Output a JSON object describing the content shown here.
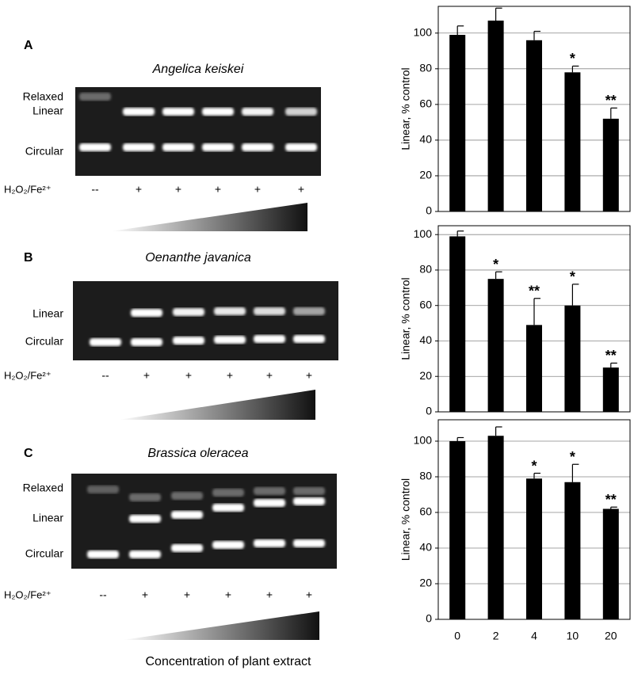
{
  "panels": [
    {
      "label": "A",
      "title": "Angelica keiskei",
      "bands": [
        "Relaxed",
        "Linear",
        "Circular"
      ],
      "treatment": "H₂O₂/Fe²⁺",
      "lanes": [
        "--",
        "+",
        "+",
        "+",
        "+",
        "+"
      ]
    },
    {
      "label": "B",
      "title": "Oenanthe javanica",
      "bands": [
        "Linear",
        "Circular"
      ],
      "treatment": "H₂O₂/Fe²⁺",
      "lanes": [
        "--",
        "+",
        "+",
        "+",
        "+",
        "+"
      ]
    },
    {
      "label": "C",
      "title": "Brassica oleracea",
      "bands": [
        "Relaxed",
        "Linear",
        "Circular"
      ],
      "treatment": "H₂O₂/Fe²⁺",
      "lanes": [
        "--",
        "+",
        "+",
        "+",
        "+",
        "+"
      ]
    }
  ],
  "footer": "Concentration of plant extract",
  "chart_data": [
    {
      "type": "bar",
      "ylabel": "Linear, % control",
      "categories": [
        null,
        null,
        null,
        null,
        null
      ],
      "values": [
        99,
        107,
        96,
        78,
        52
      ],
      "errors": [
        5,
        7,
        5,
        3.5,
        6
      ],
      "annotations": [
        null,
        null,
        null,
        "*",
        "**"
      ],
      "color": "#000000",
      "ylim": [
        0,
        115
      ],
      "yticks": [
        0,
        20,
        40,
        60,
        80,
        100
      ],
      "grid": true
    },
    {
      "type": "bar",
      "ylabel": "Linear, % control",
      "categories": [
        null,
        null,
        null,
        null,
        null
      ],
      "values": [
        99,
        75,
        49,
        60,
        25
      ],
      "errors": [
        3,
        4,
        15,
        12,
        2.5
      ],
      "annotations": [
        null,
        "*",
        "**",
        "*",
        "**"
      ],
      "color": "#000000",
      "ylim": [
        0,
        105
      ],
      "yticks": [
        0,
        20,
        40,
        60,
        80,
        100
      ],
      "grid": true
    },
    {
      "type": "bar",
      "ylabel": "Linear, % control",
      "categories": [
        "0",
        "2",
        "4",
        "10",
        "20"
      ],
      "values": [
        100,
        103,
        79,
        77,
        62
      ],
      "errors": [
        2,
        5,
        3,
        10,
        1
      ],
      "annotations": [
        null,
        null,
        "*",
        "*",
        "**"
      ],
      "color": "#000000",
      "ylim": [
        0,
        112
      ],
      "yticks": [
        0,
        20,
        40,
        60,
        80,
        100
      ],
      "grid": true
    }
  ]
}
